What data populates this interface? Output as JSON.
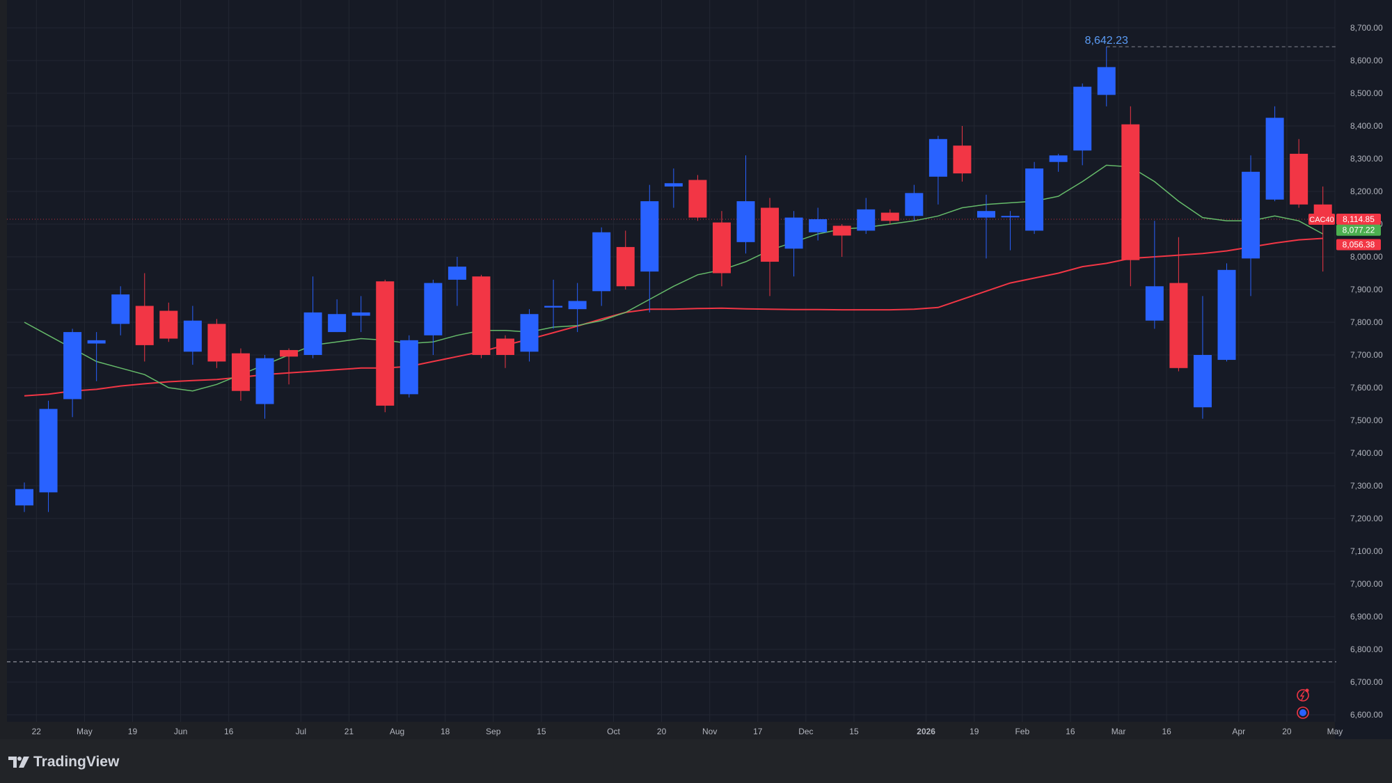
{
  "chart_data": {
    "type": "candlestick",
    "symbol": "CAC40",
    "interval": "weekly",
    "ylim": [
      6550,
      8750
    ],
    "y_ticks": [
      "8,700.00",
      "8,600.00",
      "8,500.00",
      "8,400.00",
      "8,300.00",
      "8,200.00",
      "8,100.00",
      "8,000.00",
      "7,900.00",
      "7,800.00",
      "7,700.00",
      "7,600.00",
      "7,500.00",
      "7,400.00",
      "7,300.00",
      "7,200.00",
      "7,100.00",
      "7,000.00",
      "6,900.00",
      "6,800.00",
      "6,700.00",
      "6,600.00"
    ],
    "x_labels": [
      {
        "label": "22",
        "idx": 0.5
      },
      {
        "label": "May",
        "idx": 2.5
      },
      {
        "label": "19",
        "idx": 4.5
      },
      {
        "label": "Jun",
        "idx": 6.5
      },
      {
        "label": "16",
        "idx": 8.5
      },
      {
        "label": "Jul",
        "idx": 11.5
      },
      {
        "label": "21",
        "idx": 13.5
      },
      {
        "label": "Aug",
        "idx": 15.5
      },
      {
        "label": "18",
        "idx": 17.5
      },
      {
        "label": "Sep",
        "idx": 19.5
      },
      {
        "label": "15",
        "idx": 21.5
      },
      {
        "label": "Oct",
        "idx": 24.5
      },
      {
        "label": "20",
        "idx": 26.5
      },
      {
        "label": "Nov",
        "idx": 28.5
      },
      {
        "label": "17",
        "idx": 30.5
      },
      {
        "label": "Dec",
        "idx": 32.5
      },
      {
        "label": "15",
        "idx": 34.5
      },
      {
        "label": "2026",
        "idx": 37.5,
        "bold": true
      },
      {
        "label": "19",
        "idx": 39.5
      },
      {
        "label": "Feb",
        "idx": 41.5
      },
      {
        "label": "16",
        "idx": 43.5
      },
      {
        "label": "Mar",
        "idx": 45.5
      },
      {
        "label": "16",
        "idx": 47.5
      },
      {
        "label": "Apr",
        "idx": 50.5
      },
      {
        "label": "20",
        "idx": 52.5
      },
      {
        "label": "May",
        "idx": 54.5
      }
    ],
    "candles": [
      {
        "o": 7240,
        "h": 7310,
        "l": 7220,
        "c": 7290
      },
      {
        "o": 7280,
        "h": 7560,
        "l": 7220,
        "c": 7535
      },
      {
        "o": 7565,
        "h": 7780,
        "l": 7510,
        "c": 7770
      },
      {
        "o": 7735,
        "h": 7770,
        "l": 7620,
        "c": 7745
      },
      {
        "o": 7795,
        "h": 7910,
        "l": 7760,
        "c": 7885
      },
      {
        "o": 7850,
        "h": 7950,
        "l": 7680,
        "c": 7730
      },
      {
        "o": 7835,
        "h": 7860,
        "l": 7740,
        "c": 7750
      },
      {
        "o": 7710,
        "h": 7850,
        "l": 7670,
        "c": 7805
      },
      {
        "o": 7795,
        "h": 7810,
        "l": 7660,
        "c": 7680
      },
      {
        "o": 7705,
        "h": 7720,
        "l": 7560,
        "c": 7590
      },
      {
        "o": 7550,
        "h": 7700,
        "l": 7505,
        "c": 7690
      },
      {
        "o": 7715,
        "h": 7720,
        "l": 7610,
        "c": 7695
      },
      {
        "o": 7700,
        "h": 7940,
        "l": 7690,
        "c": 7830
      },
      {
        "o": 7770,
        "h": 7870,
        "l": 7770,
        "c": 7825
      },
      {
        "o": 7820,
        "h": 7880,
        "l": 7770,
        "c": 7830
      },
      {
        "o": 7925,
        "h": 7930,
        "l": 7525,
        "c": 7545
      },
      {
        "o": 7580,
        "h": 7760,
        "l": 7570,
        "c": 7745
      },
      {
        "o": 7760,
        "h": 7930,
        "l": 7700,
        "c": 7920
      },
      {
        "o": 7930,
        "h": 8000,
        "l": 7850,
        "c": 7970
      },
      {
        "o": 7940,
        "h": 7945,
        "l": 7690,
        "c": 7700
      },
      {
        "o": 7750,
        "h": 7760,
        "l": 7660,
        "c": 7700
      },
      {
        "o": 7710,
        "h": 7840,
        "l": 7680,
        "c": 7825
      },
      {
        "o": 7845,
        "h": 7930,
        "l": 7780,
        "c": 7850
      },
      {
        "o": 7840,
        "h": 7920,
        "l": 7770,
        "c": 7865
      },
      {
        "o": 7895,
        "h": 8090,
        "l": 7850,
        "c": 8075
      },
      {
        "o": 8030,
        "h": 8080,
        "l": 7900,
        "c": 7910
      },
      {
        "o": 7955,
        "h": 8220,
        "l": 7830,
        "c": 8170
      },
      {
        "o": 8215,
        "h": 8270,
        "l": 8150,
        "c": 8225
      },
      {
        "o": 8235,
        "h": 8250,
        "l": 8110,
        "c": 8120
      },
      {
        "o": 8105,
        "h": 8140,
        "l": 7910,
        "c": 7950
      },
      {
        "o": 8045,
        "h": 8310,
        "l": 8010,
        "c": 8170
      },
      {
        "o": 8150,
        "h": 8180,
        "l": 7880,
        "c": 7985
      },
      {
        "o": 8025,
        "h": 8140,
        "l": 7940,
        "c": 8120
      },
      {
        "o": 8075,
        "h": 8150,
        "l": 8050,
        "c": 8115
      },
      {
        "o": 8095,
        "h": 8100,
        "l": 8000,
        "c": 8065
      },
      {
        "o": 8080,
        "h": 8180,
        "l": 8070,
        "c": 8145
      },
      {
        "o": 8135,
        "h": 8145,
        "l": 8100,
        "c": 8110
      },
      {
        "o": 8125,
        "h": 8220,
        "l": 8110,
        "c": 8195
      },
      {
        "o": 8245,
        "h": 8370,
        "l": 8160,
        "c": 8360
      },
      {
        "o": 8340,
        "h": 8400,
        "l": 8230,
        "c": 8255
      },
      {
        "o": 8120,
        "h": 8190,
        "l": 7995,
        "c": 8140
      },
      {
        "o": 8125,
        "h": 8140,
        "l": 8020,
        "c": 8125
      },
      {
        "o": 8080,
        "h": 8290,
        "l": 8070,
        "c": 8270
      },
      {
        "o": 8290,
        "h": 8315,
        "l": 8260,
        "c": 8310
      },
      {
        "o": 8325,
        "h": 8530,
        "l": 8280,
        "c": 8520
      },
      {
        "o": 8495,
        "h": 8642.23,
        "l": 8460,
        "c": 8580
      },
      {
        "o": 8405,
        "h": 8460,
        "l": 7910,
        "c": 7990
      },
      {
        "o": 7805,
        "h": 8110,
        "l": 7780,
        "c": 7910
      },
      {
        "o": 7920,
        "h": 8060,
        "l": 7650,
        "c": 7660
      },
      {
        "o": 7540,
        "h": 7880,
        "l": 7505,
        "c": 7700
      },
      {
        "o": 7685,
        "h": 7980,
        "l": 7680,
        "c": 7960
      },
      {
        "o": 7995,
        "h": 8310,
        "l": 7880,
        "c": 8260
      },
      {
        "o": 8175,
        "h": 8460,
        "l": 8170,
        "c": 8425
      },
      {
        "o": 8315,
        "h": 8360,
        "l": 8150,
        "c": 8160
      },
      {
        "o": 8160,
        "h": 8215,
        "l": 7955,
        "c": 8114.85
      }
    ],
    "ma_fast": [
      7800,
      7760,
      7720,
      7680,
      7660,
      7640,
      7600,
      7590,
      7610,
      7640,
      7670,
      7700,
      7730,
      7740,
      7750,
      7745,
      7735,
      7740,
      7760,
      7775,
      7775,
      7770,
      7785,
      7790,
      7805,
      7830,
      7870,
      7910,
      7945,
      7960,
      7985,
      8020,
      8045,
      8070,
      8085,
      8090,
      8100,
      8110,
      8125,
      8150,
      8160,
      8165,
      8170,
      8185,
      8230,
      8280,
      8275,
      8230,
      8170,
      8120,
      8110,
      8110,
      8125,
      8110,
      8070
    ],
    "ma_slow": [
      7575,
      7580,
      7590,
      7595,
      7605,
      7612,
      7618,
      7622,
      7625,
      7632,
      7640,
      7645,
      7650,
      7655,
      7660,
      7660,
      7665,
      7680,
      7695,
      7710,
      7730,
      7748,
      7768,
      7788,
      7810,
      7830,
      7840,
      7840,
      7842,
      7843,
      7841,
      7840,
      7839,
      7839,
      7838,
      7838,
      7838,
      7840,
      7845,
      7870,
      7895,
      7920,
      7935,
      7950,
      7970,
      7980,
      7995,
      8000,
      8005,
      8010,
      8018,
      8030,
      8042,
      8052,
      8056.38
    ],
    "highlight_label": "8,642.23",
    "support_line": 6762,
    "current_price_line": 8114.85,
    "price_labels": [
      {
        "text": "8,114.85",
        "value": 8114.85,
        "color": "#f23645",
        "symbol": "CAC40"
      },
      {
        "text": "8,077.22",
        "value": 8077.22,
        "color": "#4caf50"
      },
      {
        "text": "8,056.38",
        "value": 8056.38,
        "color": "#f23645"
      }
    ],
    "colors": {
      "up": "#2962ff",
      "down": "#f23645",
      "ma_fast": "#66bb6a",
      "ma_slow": "#f23645",
      "bg": "#161a25",
      "axis_text": "#b2b5be",
      "grid": "#232732"
    }
  },
  "footer": {
    "brand": "TradingView"
  }
}
